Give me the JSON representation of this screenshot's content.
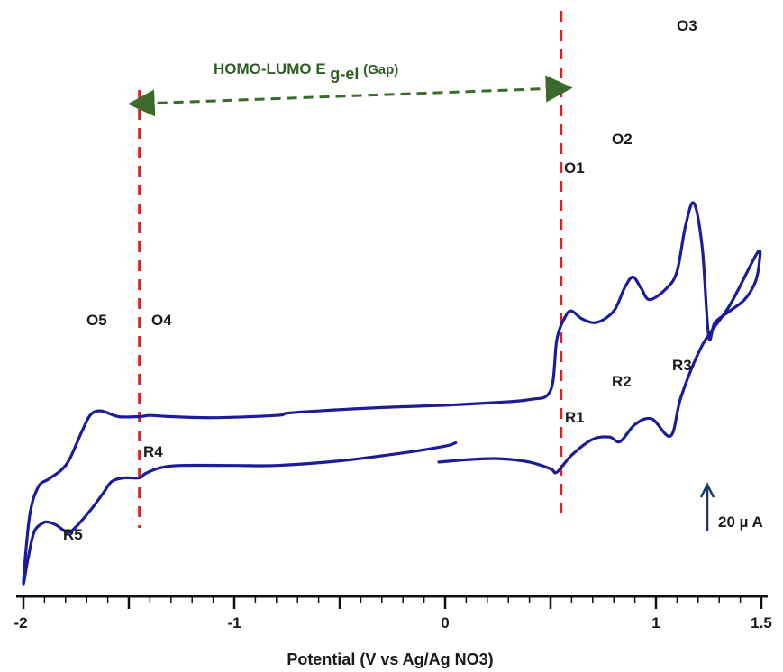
{
  "chart_data": {
    "type": "line",
    "title": "",
    "xlabel": "Potential (V vs Ag/Ag NO3)",
    "ylabel": "",
    "xlim": [
      -2,
      1.5
    ],
    "x_ticks": [
      "-2",
      "-1",
      "0",
      "1",
      "1.5"
    ],
    "grid": false,
    "colors": {
      "curve": "#1c1c9a",
      "marker": "#e02020",
      "gap_arrow": "#3a6b2a",
      "axis": "#111111"
    },
    "gap_annotation": {
      "text": "HOMO-LUMO E",
      "subscript": "g-el",
      "suffix": "(Gap)",
      "from_x": -1.45,
      "to_x": 0.55
    },
    "reference_lines_x": [
      -1.45,
      0.55
    ],
    "scale_bar": {
      "label": "20 µ A",
      "icon": "up-arrow-icon"
    },
    "peaks": [
      {
        "label": "O1",
        "x": 0.57
      },
      {
        "label": "O2",
        "x": 0.89
      },
      {
        "label": "O3",
        "x": 1.18
      },
      {
        "label": "O4",
        "x": -1.42
      },
      {
        "label": "O5",
        "x": -1.63
      },
      {
        "label": "R1",
        "x": 0.53
      },
      {
        "label": "R2",
        "x": 0.83
      },
      {
        "label": "R3",
        "x": 1.07
      },
      {
        "label": "R4",
        "x": -1.45
      },
      {
        "label": "R5",
        "x": -1.79
      }
    ],
    "series": [
      {
        "values": [
          [
            -0.03,
            -8.8
          ],
          [
            0.1,
            -8.6
          ],
          [
            0.25,
            -8.5
          ],
          [
            0.4,
            -8.8
          ],
          [
            0.5,
            -9.4
          ],
          [
            0.53,
            -9.7
          ],
          [
            0.6,
            -8.2
          ],
          [
            0.7,
            -6.8
          ],
          [
            0.78,
            -6.6
          ],
          [
            0.83,
            -7.0
          ],
          [
            0.9,
            -5.5
          ],
          [
            0.98,
            -5.0
          ],
          [
            1.07,
            -6.5
          ],
          [
            1.12,
            -3.0
          ],
          [
            1.22,
            1.5
          ],
          [
            1.35,
            5.0
          ],
          [
            1.48,
            9.6
          ],
          [
            1.49,
            8.8
          ],
          [
            1.47,
            7.0
          ],
          [
            1.42,
            5.5
          ],
          [
            1.35,
            4.5
          ],
          [
            1.28,
            3.5
          ],
          [
            1.25,
            2.3
          ],
          [
            1.22,
            10.0
          ],
          [
            1.18,
            14.0
          ],
          [
            1.14,
            12.0
          ],
          [
            1.1,
            8.0
          ],
          [
            1.05,
            6.5
          ],
          [
            0.97,
            5.5
          ],
          [
            0.93,
            6.5
          ],
          [
            0.89,
            7.5
          ],
          [
            0.85,
            6.5
          ],
          [
            0.8,
            4.5
          ],
          [
            0.72,
            3.5
          ],
          [
            0.65,
            3.8
          ],
          [
            0.6,
            4.5
          ],
          [
            0.57,
            4.0
          ],
          [
            0.53,
            2.0
          ],
          [
            0.5,
            -2.5
          ],
          [
            0.4,
            -3.3
          ],
          [
            0.2,
            -3.6
          ],
          [
            0.0,
            -3.8
          ],
          [
            -0.3,
            -4.0
          ],
          [
            -0.6,
            -4.3
          ],
          [
            -0.75,
            -4.5
          ],
          [
            -0.8,
            -4.7
          ],
          [
            -1.1,
            -4.9
          ],
          [
            -1.3,
            -4.8
          ],
          [
            -1.4,
            -4.7
          ],
          [
            -1.45,
            -4.8
          ],
          [
            -1.55,
            -4.8
          ],
          [
            -1.63,
            -4.3
          ],
          [
            -1.68,
            -4.6
          ],
          [
            -1.72,
            -6.0
          ],
          [
            -1.78,
            -8.5
          ],
          [
            -1.82,
            -9.5
          ],
          [
            -1.88,
            -10.3
          ],
          [
            -1.93,
            -11.0
          ],
          [
            -1.97,
            -13.5
          ],
          [
            -2.0,
            -19.4
          ],
          [
            -1.98,
            -17.5
          ],
          [
            -1.95,
            -15.0
          ],
          [
            -1.91,
            -14.2
          ],
          [
            -1.88,
            -14.1
          ],
          [
            -1.84,
            -14.4
          ],
          [
            -1.79,
            -15.0
          ],
          [
            -1.75,
            -14.5
          ],
          [
            -1.68,
            -13.0
          ],
          [
            -1.62,
            -11.5
          ],
          [
            -1.58,
            -10.5
          ],
          [
            -1.52,
            -10.2
          ],
          [
            -1.45,
            -10.2
          ],
          [
            -1.42,
            -9.8
          ],
          [
            -1.35,
            -9.3
          ],
          [
            -1.25,
            -9.1
          ],
          [
            -1.0,
            -9.1
          ],
          [
            -0.8,
            -9.1
          ],
          [
            -0.5,
            -8.7
          ],
          [
            -0.2,
            -8.0
          ],
          [
            0.0,
            -7.4
          ],
          [
            0.05,
            -7.1
          ]
        ]
      }
    ]
  }
}
